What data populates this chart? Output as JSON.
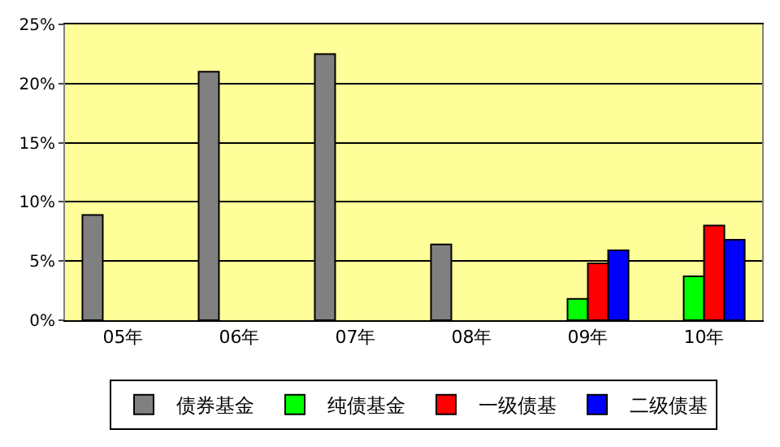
{
  "chart_data": {
    "type": "bar",
    "categories": [
      "05年",
      "06年",
      "07年",
      "08年",
      "09年",
      "10年"
    ],
    "series": [
      {
        "name": "债券基金",
        "color": "#808080",
        "values": [
          8.9,
          21,
          22.5,
          6.4,
          null,
          null
        ]
      },
      {
        "name": "纯债基金",
        "color": "#00ff00",
        "values": [
          null,
          null,
          null,
          null,
          1.8,
          3.7
        ]
      },
      {
        "name": "一级债基",
        "color": "#ff0000",
        "values": [
          null,
          null,
          null,
          null,
          4.8,
          8.0
        ]
      },
      {
        "name": "二级债基",
        "color": "#0000ff",
        "values": [
          null,
          null,
          null,
          null,
          5.9,
          6.8
        ]
      }
    ],
    "ylim": [
      0,
      25
    ],
    "yticks": [
      {
        "value": 0,
        "label": "0%"
      },
      {
        "value": 5,
        "label": "5%"
      },
      {
        "value": 10,
        "label": "10%"
      },
      {
        "value": 15,
        "label": "15%"
      },
      {
        "value": 20,
        "label": "20%"
      },
      {
        "value": 25,
        "label": "25%"
      }
    ],
    "grid": "y",
    "legend": "bottom"
  }
}
